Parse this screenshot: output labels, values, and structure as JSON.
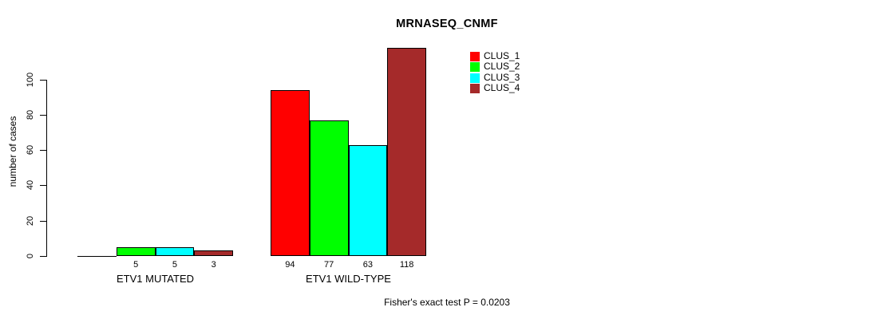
{
  "title": "MRNASEQ_CNMF",
  "chart_data": {
    "type": "bar",
    "title": "MRNASEQ_CNMF",
    "ylabel": "number of cases",
    "xlabel": "",
    "categories": [
      "ETV1 MUTATED",
      "ETV1 WILD-TYPE"
    ],
    "series": [
      {
        "name": "CLUS_1",
        "color": "#FF0000",
        "values": [
          0,
          94
        ]
      },
      {
        "name": "CLUS_2",
        "color": "#00FF00",
        "values": [
          5,
          77
        ]
      },
      {
        "name": "CLUS_3",
        "color": "#00FFFF",
        "values": [
          5,
          63
        ]
      },
      {
        "name": "CLUS_4",
        "color": "#A52A2A",
        "values": [
          3,
          118
        ]
      }
    ],
    "bar_value_labels": [
      [
        "",
        "5",
        "5",
        "3"
      ],
      [
        "94",
        "77",
        "63",
        "118"
      ]
    ],
    "yticks": [
      0,
      20,
      40,
      60,
      80,
      100
    ],
    "ylim": [
      0,
      100
    ],
    "grid": false,
    "legend_position": "top-right",
    "bar_border_color": "#000000",
    "text_color": "#000000",
    "background_color": "#FFFFFF",
    "annotation": "Fisher's exact test P = 0.0203"
  }
}
